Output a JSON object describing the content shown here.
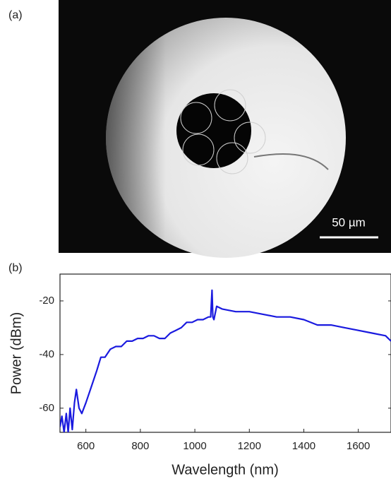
{
  "panel_a": {
    "label": "(a)",
    "scale_bar": "50 µm"
  },
  "chart_data": {
    "type": "line",
    "panel_label": "(b)",
    "x_label": "Wavelength (nm)",
    "y_label": "Power (dBm)",
    "xlim": [
      505,
      1720
    ],
    "ylim": [
      -69,
      -10
    ],
    "xticks": [
      600,
      800,
      1000,
      1200,
      1400,
      1600
    ],
    "yticks": [
      -20,
      -40,
      -60
    ],
    "x": [
      505,
      512,
      520,
      528,
      535,
      542,
      550,
      558,
      565,
      575,
      585,
      600,
      620,
      640,
      655,
      670,
      690,
      710,
      730,
      750,
      770,
      790,
      810,
      830,
      850,
      870,
      890,
      910,
      930,
      950,
      970,
      990,
      1010,
      1030,
      1050,
      1058,
      1063,
      1066,
      1070,
      1080,
      1100,
      1150,
      1200,
      1250,
      1300,
      1350,
      1400,
      1450,
      1500,
      1550,
      1600,
      1650,
      1700,
      1720
    ],
    "series": [
      {
        "name": "Power",
        "color": "#1a1adf",
        "values": [
          -67,
          -63,
          -69,
          -62,
          -69,
          -60,
          -68,
          -58,
          -53,
          -60,
          -62,
          -58,
          -52,
          -46,
          -41,
          -41,
          -38,
          -37,
          -37,
          -35,
          -35,
          -34,
          -34,
          -33,
          -33,
          -34,
          -34,
          -32,
          -31,
          -30,
          -28,
          -28,
          -27,
          -27,
          -26,
          -26,
          -16,
          -26,
          -27,
          -22,
          -23,
          -24,
          -24,
          -25,
          -26,
          -26,
          -27,
          -29,
          -29,
          -30,
          -31,
          -32,
          -33,
          -35
        ]
      }
    ]
  }
}
